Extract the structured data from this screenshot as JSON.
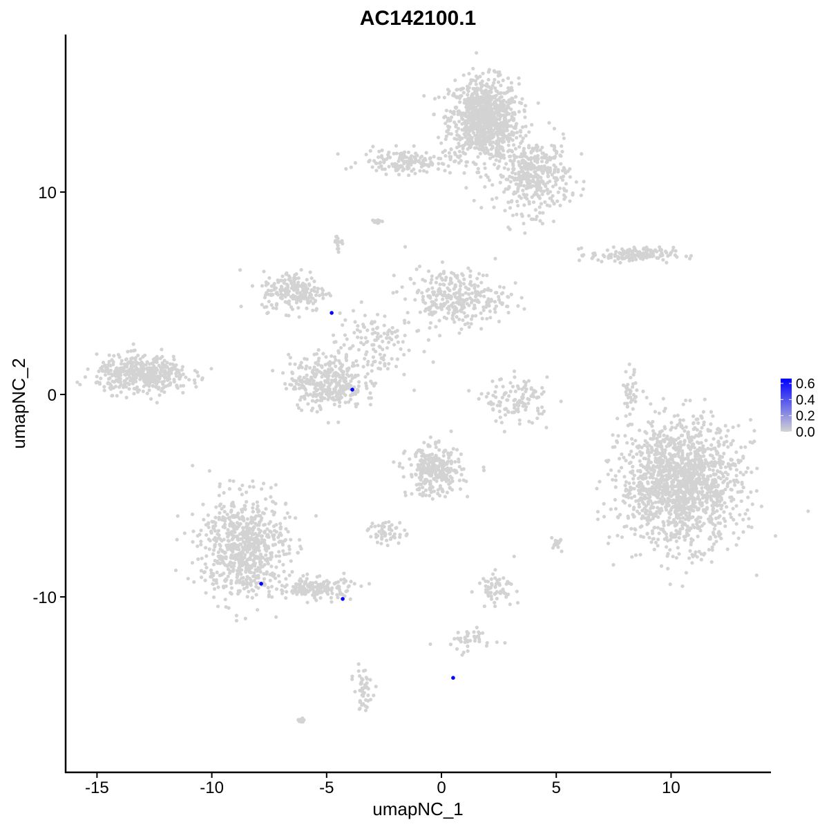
{
  "chart_data": {
    "type": "scatter",
    "title": "AC142100.1",
    "xlabel": "umapNC_1",
    "ylabel": "umapNC_2",
    "xlim": [
      -16.4,
      14.3
    ],
    "ylim": [
      -18.7,
      17.8
    ],
    "xticks": [
      -15,
      -10,
      -5,
      0,
      5,
      10
    ],
    "yticks": [
      -10,
      0,
      10
    ],
    "grid": false,
    "colors": {
      "low": "#d3d3d3",
      "high": "#0000ff"
    },
    "legend": {
      "placement": "right",
      "ticks": [
        "0.0",
        "0.2",
        "0.4",
        "0.6"
      ],
      "range": [
        0,
        0.66
      ]
    },
    "background_clusters_approx": [
      {
        "cx": 1.85,
        "cy": 13.6,
        "sx": 0.75,
        "sy": 1.0,
        "n": 900
      },
      {
        "cx": 4.0,
        "cy": 10.8,
        "sx": 0.8,
        "sy": 0.9,
        "n": 400
      },
      {
        "cx": -1.5,
        "cy": 11.5,
        "sx": 1.0,
        "sy": 0.3,
        "n": 150
      },
      {
        "cx": -2.8,
        "cy": 8.6,
        "sx": 0.15,
        "sy": 0.1,
        "n": 10
      },
      {
        "cx": -4.5,
        "cy": 7.5,
        "sx": 0.15,
        "sy": 0.2,
        "n": 15
      },
      {
        "cx": 8.3,
        "cy": 6.9,
        "sx": 0.9,
        "sy": 0.18,
        "n": 150
      },
      {
        "cx": -6.4,
        "cy": 5.1,
        "sx": 0.7,
        "sy": 0.5,
        "n": 200
      },
      {
        "cx": 0.6,
        "cy": 4.8,
        "sx": 1.1,
        "sy": 0.7,
        "n": 300
      },
      {
        "cx": -3.0,
        "cy": 2.5,
        "sx": 0.8,
        "sy": 0.9,
        "n": 120
      },
      {
        "cx": -5.0,
        "cy": 0.6,
        "sx": 0.8,
        "sy": 0.65,
        "n": 350
      },
      {
        "cx": -13.0,
        "cy": 1.0,
        "sx": 1.0,
        "sy": 0.45,
        "n": 450
      },
      {
        "cx": 10.4,
        "cy": -4.4,
        "sx": 1.3,
        "sy": 1.5,
        "n": 1500
      },
      {
        "cx": 3.3,
        "cy": -0.3,
        "sx": 0.7,
        "sy": 0.55,
        "n": 120
      },
      {
        "cx": 8.2,
        "cy": 0.0,
        "sx": 0.15,
        "sy": 0.6,
        "n": 40
      },
      {
        "cx": -0.3,
        "cy": -3.8,
        "sx": 0.6,
        "sy": 0.6,
        "n": 300
      },
      {
        "cx": -2.4,
        "cy": -6.8,
        "sx": 0.4,
        "sy": 0.3,
        "n": 50
      },
      {
        "cx": -8.6,
        "cy": -7.5,
        "sx": 0.95,
        "sy": 1.25,
        "n": 700
      },
      {
        "cx": -5.5,
        "cy": -9.6,
        "sx": 0.85,
        "sy": 0.28,
        "n": 150
      },
      {
        "cx": 2.4,
        "cy": -9.5,
        "sx": 0.4,
        "sy": 0.35,
        "n": 60
      },
      {
        "cx": 1.2,
        "cy": -12.2,
        "sx": 0.6,
        "sy": 0.35,
        "n": 40
      },
      {
        "cx": -3.4,
        "cy": -14.6,
        "sx": 0.2,
        "sy": 0.5,
        "n": 50
      },
      {
        "cx": -6.1,
        "cy": -16.1,
        "sx": 0.08,
        "sy": 0.08,
        "n": 8
      },
      {
        "cx": 5.0,
        "cy": -7.3,
        "sx": 0.15,
        "sy": 0.2,
        "n": 15
      }
    ],
    "expressing_points": [
      {
        "x": -4.78,
        "y": 4.03,
        "value": 0.66
      },
      {
        "x": -3.88,
        "y": 0.24,
        "value": 0.66
      },
      {
        "x": -7.85,
        "y": -9.35,
        "value": 0.66
      },
      {
        "x": -4.3,
        "y": -10.1,
        "value": 0.66
      },
      {
        "x": 0.51,
        "y": -14.0,
        "value": 0.66
      }
    ]
  }
}
